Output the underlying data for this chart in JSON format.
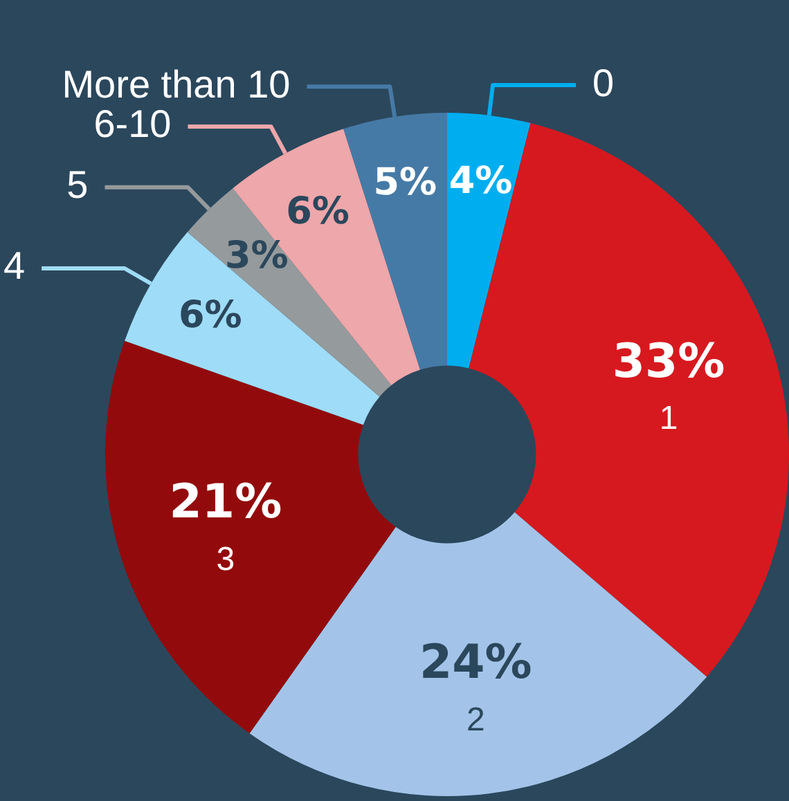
{
  "chart_data": {
    "type": "donut",
    "categories": [
      "0",
      "1",
      "2",
      "3",
      "4",
      "5",
      "6-10",
      "More than 10"
    ],
    "values": [
      4,
      33,
      24,
      21,
      6,
      3,
      6,
      5
    ],
    "colors": [
      "#00aeef",
      "#d6191f",
      "#a3c4e8",
      "#930a0c",
      "#9fdcf7",
      "#959a9c",
      "#eea7aa",
      "#467aa6"
    ],
    "value_labels": [
      "4%",
      "33%",
      "24%",
      "21%",
      "6%",
      "3%",
      "6%",
      "5%"
    ],
    "legend": false
  }
}
